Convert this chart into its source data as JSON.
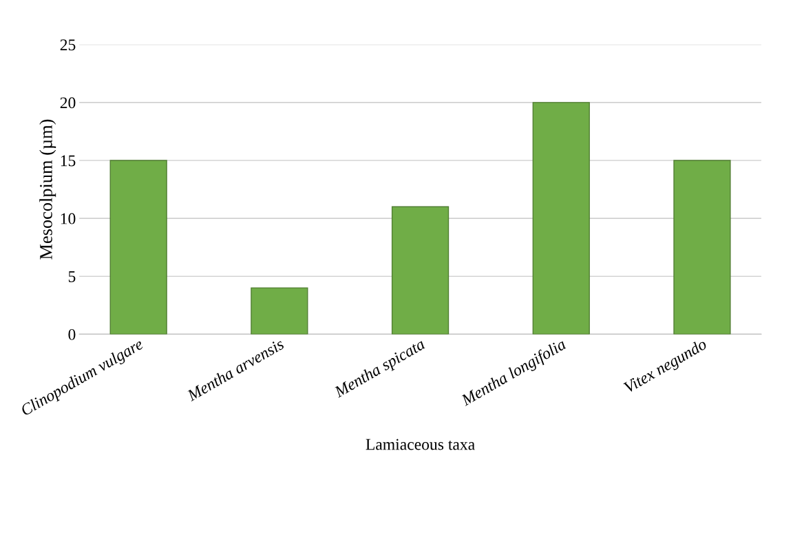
{
  "chart_data": {
    "type": "bar",
    "xlabel": "Lamiaceous taxa",
    "ylabel": "Mesocolpium (µm)",
    "categories": [
      "Clinopodium vulgare",
      "Mentha arvensis",
      "Mentha spicata",
      "Mentha longifolia",
      "Vitex negundo"
    ],
    "values": [
      15,
      4,
      11,
      20,
      15
    ],
    "color": "#70ad47",
    "ylim": [
      0,
      25
    ],
    "yticks": [
      0,
      5,
      10,
      15,
      20,
      25
    ],
    "grid": "y"
  }
}
